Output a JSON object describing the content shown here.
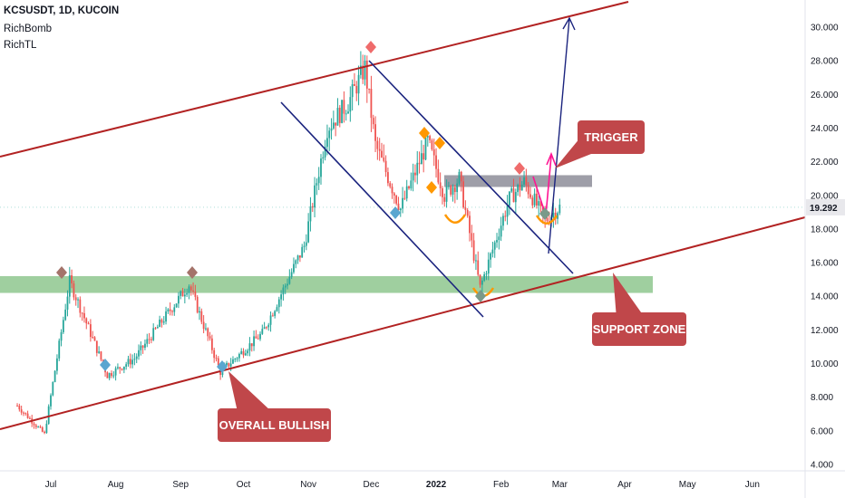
{
  "header": {
    "symbol_line": "KCSUSDT, 1D, KUCOIN",
    "indicator_1": "RichBomb",
    "indicator_2": "RichTL"
  },
  "chart_data": {
    "type": "candlestick",
    "y_ticks": [
      "4.000",
      "6.000",
      "8.000",
      "10.000",
      "12.000",
      "14.000",
      "16.000",
      "18.000",
      "20.000",
      "22.000",
      "24.000",
      "26.000",
      "28.000",
      "30.000"
    ],
    "ylim": [
      3.2,
      31.3
    ],
    "x_ticks": [
      "Jul",
      "Aug",
      "Sep",
      "Oct",
      "Nov",
      "Dec",
      "2022",
      "Feb",
      "Mar",
      "Apr",
      "May",
      "Jun"
    ],
    "last_price": "19.292",
    "annotations": {
      "trigger": "TRIGGER",
      "support_zone": "SUPPORT ZONE",
      "overall_bullish": "OVERALL BULLISH"
    },
    "key_points": [
      {
        "date": "2021-06-15",
        "price": 7.5
      },
      {
        "date": "2021-06-28",
        "price": 5.8
      },
      {
        "date": "2021-07-10",
        "price": 14.9
      },
      {
        "date": "2021-07-28",
        "price": 9.3
      },
      {
        "date": "2021-08-10",
        "price": 10.3
      },
      {
        "date": "2021-09-05",
        "price": 14.7
      },
      {
        "date": "2021-09-20",
        "price": 9.5
      },
      {
        "date": "2021-10-10",
        "price": 11.8
      },
      {
        "date": "2021-10-30",
        "price": 17.0
      },
      {
        "date": "2021-11-10",
        "price": 24.0
      },
      {
        "date": "2021-11-20",
        "price": 25.5
      },
      {
        "date": "2021-11-28",
        "price": 27.6
      },
      {
        "date": "2021-12-03",
        "price": 23.0
      },
      {
        "date": "2021-12-15",
        "price": 19.2
      },
      {
        "date": "2021-12-28",
        "price": 23.2
      },
      {
        "date": "2022-01-05",
        "price": 20.0
      },
      {
        "date": "2022-01-12",
        "price": 21.0
      },
      {
        "date": "2022-01-22",
        "price": 14.5
      },
      {
        "date": "2022-02-05",
        "price": 19.8
      },
      {
        "date": "2022-02-12",
        "price": 20.8
      },
      {
        "date": "2022-02-22",
        "price": 18.5
      },
      {
        "date": "2022-03-01",
        "price": 19.3
      }
    ]
  },
  "colors": {
    "up": "#26a69a",
    "down": "#ef5350",
    "channel": "#b22222",
    "wedge": "#1a237e",
    "support_zone": "#7fbf7f",
    "resistance_zone": "#8d8d99",
    "callout": "#c0474a",
    "trigger_arrow": "#ff1493"
  }
}
